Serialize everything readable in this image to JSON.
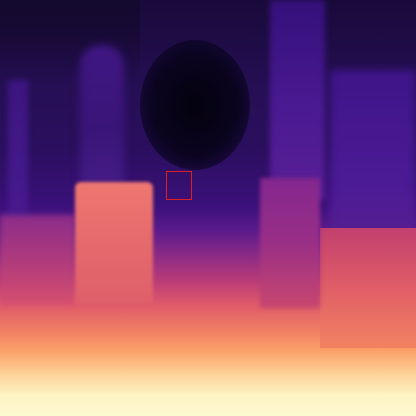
{
  "image": {
    "kind": "depth-map",
    "colormap": "magma",
    "colors": {
      "near": "#fdfad0",
      "mid": "#df5b6a",
      "far": "#1a0a3a",
      "darkest": "#04020d"
    },
    "highlight_box": {
      "color": "#e01e1e"
    }
  }
}
